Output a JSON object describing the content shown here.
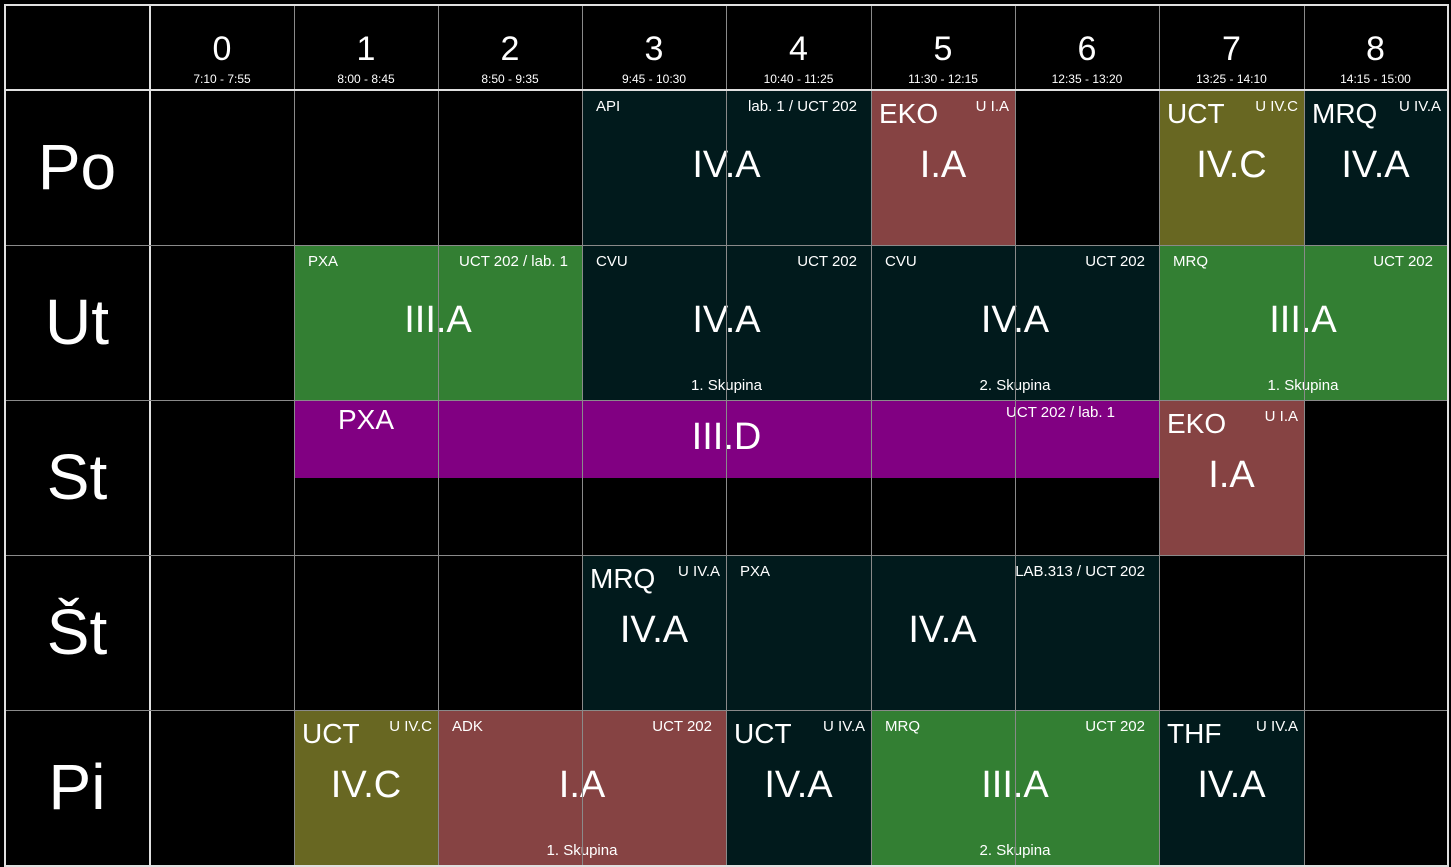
{
  "colors": {
    "dark": "#011a1c",
    "green": "#337f33",
    "red": "#864343",
    "olive": "#686722",
    "purple": "#810082"
  },
  "periods": [
    {
      "num": "0",
      "time": "7:10 - 7:55"
    },
    {
      "num": "1",
      "time": "8:00 - 8:45"
    },
    {
      "num": "2",
      "time": "8:50 - 9:35"
    },
    {
      "num": "3",
      "time": "9:45 - 10:30"
    },
    {
      "num": "4",
      "time": "10:40 - 11:25"
    },
    {
      "num": "5",
      "time": "11:30 - 12:15"
    },
    {
      "num": "6",
      "time": "12:35 - 13:20"
    },
    {
      "num": "7",
      "time": "13:25 - 14:10"
    },
    {
      "num": "8",
      "time": "14:15 - 15:00"
    }
  ],
  "days": [
    "Po",
    "Ut",
    "St",
    "Št",
    "Pi"
  ],
  "lessons": [
    {
      "day": 0,
      "start": 3,
      "span": 2,
      "color": "dark",
      "subject": "API",
      "room": "lab. 1 / UCT 202",
      "class": "IV.A",
      "group": ""
    },
    {
      "day": 0,
      "start": 5,
      "span": 1,
      "color": "red",
      "subject": "EKO",
      "room": "U I.A",
      "class": "I.A",
      "group": ""
    },
    {
      "day": 0,
      "start": 7,
      "span": 1,
      "color": "olive",
      "subject": "UCT",
      "room": "U IV.C",
      "class": "IV.C",
      "group": ""
    },
    {
      "day": 0,
      "start": 8,
      "span": 1,
      "color": "dark",
      "subject": "MRQ",
      "room": "U IV.A",
      "class": "IV.A",
      "group": ""
    },
    {
      "day": 1,
      "start": 1,
      "span": 2,
      "color": "green",
      "subject": "PXA",
      "room": "UCT 202 / lab. 1",
      "class": "III.A",
      "group": ""
    },
    {
      "day": 1,
      "start": 3,
      "span": 2,
      "color": "dark",
      "subject": "CVU",
      "room": "UCT 202",
      "class": "IV.A",
      "group": "1. Skupina"
    },
    {
      "day": 1,
      "start": 5,
      "span": 2,
      "color": "dark",
      "subject": "CVU",
      "room": "UCT 202",
      "class": "IV.A",
      "group": "2. Skupina"
    },
    {
      "day": 1,
      "start": 7,
      "span": 2,
      "color": "green",
      "subject": "MRQ",
      "room": "UCT 202",
      "class": "III.A",
      "group": "1. Skupina"
    },
    {
      "day": 2,
      "start": 1,
      "span": 6,
      "color": "purple",
      "subject": "PXA",
      "room": "UCT 202 / lab. 1",
      "class": "III.D",
      "group": "",
      "half": true
    },
    {
      "day": 2,
      "start": 7,
      "span": 1,
      "color": "red",
      "subject": "EKO",
      "room": "U I.A",
      "class": "I.A",
      "group": ""
    },
    {
      "day": 3,
      "start": 3,
      "span": 1,
      "color": "dark",
      "subject": "MRQ",
      "room": "U IV.A",
      "class": "IV.A",
      "group": ""
    },
    {
      "day": 3,
      "start": 4,
      "span": 3,
      "color": "dark",
      "subject": "PXA",
      "room": "LAB.313 / UCT 202",
      "class": "IV.A",
      "group": ""
    },
    {
      "day": 4,
      "start": 1,
      "span": 1,
      "color": "olive",
      "subject": "UCT",
      "room": "U IV.C",
      "class": "IV.C",
      "group": ""
    },
    {
      "day": 4,
      "start": 2,
      "span": 2,
      "color": "red",
      "subject": "ADK",
      "room": "UCT 202",
      "class": "I.A",
      "group": "1. Skupina"
    },
    {
      "day": 4,
      "start": 4,
      "span": 1,
      "color": "dark",
      "subject": "UCT",
      "room": "U IV.A",
      "class": "IV.A",
      "group": ""
    },
    {
      "day": 4,
      "start": 5,
      "span": 2,
      "color": "green",
      "subject": "MRQ",
      "room": "UCT 202",
      "class": "III.A",
      "group": "2. Skupina"
    },
    {
      "day": 4,
      "start": 7,
      "span": 1,
      "color": "dark",
      "subject": "THF",
      "room": "U IV.A",
      "class": "IV.A",
      "group": ""
    }
  ]
}
